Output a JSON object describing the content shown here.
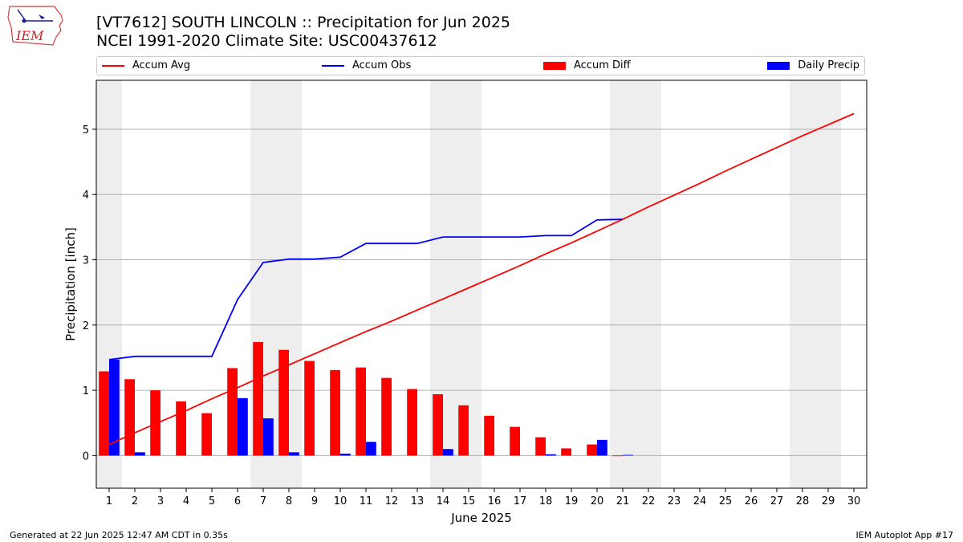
{
  "title_line1": "[VT7612] SOUTH LINCOLN :: Precipitation for Jun 2025",
  "title_line2": "NCEI 1991-2020 Climate Site: USC00437612",
  "logo_text": "IEM",
  "footer_left": "Generated at 22 Jun 2025 12:47 AM CDT in 0.35s",
  "footer_right": "IEM Autoplot App #17",
  "colors": {
    "avg": "#ff0000",
    "obs": "#0000ff",
    "diff": "#ff0000",
    "daily": "#0000ff",
    "weekend": "#eeeeee",
    "grid": "#b0b0b0"
  },
  "legend": [
    {
      "label": "Accum Avg",
      "kind": "line",
      "color": "#ff0000"
    },
    {
      "label": "Accum Obs",
      "kind": "line",
      "color": "#0000ff"
    },
    {
      "label": "Accum Diff",
      "kind": "box",
      "color": "#ff0000"
    },
    {
      "label": "Daily Precip",
      "kind": "box",
      "color": "#0000ff"
    }
  ],
  "chart_data": {
    "type": "bar",
    "xlabel": "June 2025",
    "ylabel": "Precipitation [inch]",
    "xlim": [
      0.5,
      30.5
    ],
    "ylim": [
      -0.5,
      5.75
    ],
    "yticks": [
      0,
      1,
      2,
      3,
      4,
      5
    ],
    "grid": true,
    "legend_position": "top",
    "categories": [
      "1",
      "2",
      "3",
      "4",
      "5",
      "6",
      "7",
      "8",
      "9",
      "10",
      "11",
      "12",
      "13",
      "14",
      "15",
      "16",
      "17",
      "18",
      "19",
      "20",
      "21",
      "22",
      "23",
      "24",
      "25",
      "26",
      "27",
      "28",
      "29",
      "30"
    ],
    "weekend_days": [
      1,
      7,
      8,
      14,
      15,
      21,
      22,
      28,
      29
    ],
    "series": [
      {
        "name": "Accum Avg",
        "kind": "line",
        "values": [
          0.17,
          0.35,
          0.52,
          0.69,
          0.87,
          1.04,
          1.22,
          1.39,
          1.56,
          1.73,
          1.9,
          2.06,
          2.23,
          2.4,
          2.57,
          2.74,
          2.91,
          3.09,
          3.26,
          3.44,
          3.62,
          3.81,
          3.99,
          4.17,
          4.36,
          4.54,
          4.72,
          4.9,
          5.07,
          5.24
        ]
      },
      {
        "name": "Accum Obs",
        "kind": "line",
        "values": [
          1.47,
          1.52,
          1.52,
          1.52,
          1.52,
          2.39,
          2.96,
          3.01,
          3.01,
          3.04,
          3.25,
          3.25,
          3.25,
          3.35,
          3.35,
          3.35,
          3.35,
          3.37,
          3.37,
          3.61,
          3.62,
          null,
          null,
          null,
          null,
          null,
          null,
          null,
          null,
          null
        ]
      },
      {
        "name": "Accum Diff",
        "kind": "bar",
        "values": [
          1.29,
          1.17,
          1.0,
          0.83,
          0.65,
          1.34,
          1.74,
          1.62,
          1.45,
          1.31,
          1.35,
          1.19,
          1.02,
          0.94,
          0.77,
          0.61,
          0.44,
          0.28,
          0.11,
          0.17,
          -0.01,
          null,
          null,
          null,
          null,
          null,
          null,
          null,
          null,
          null
        ]
      },
      {
        "name": "Daily Precip",
        "kind": "bar",
        "values": [
          1.47,
          0.05,
          0,
          0,
          0,
          0.88,
          0.57,
          0.05,
          0,
          0.03,
          0.21,
          0,
          0,
          0.1,
          0,
          0,
          0,
          0.02,
          0,
          0.24,
          0.01,
          null,
          null,
          null,
          null,
          null,
          null,
          null,
          null,
          null
        ]
      }
    ]
  }
}
